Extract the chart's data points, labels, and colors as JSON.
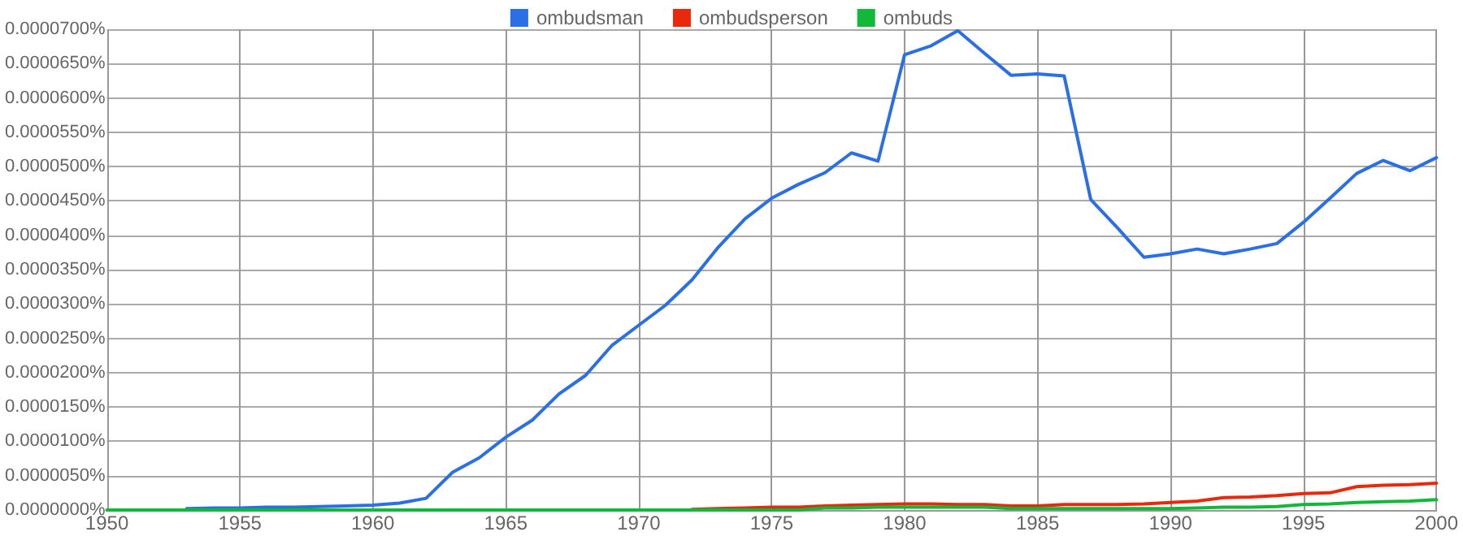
{
  "chart_data": {
    "type": "line",
    "x": [
      1950,
      1951,
      1952,
      1953,
      1954,
      1955,
      1956,
      1957,
      1958,
      1959,
      1960,
      1961,
      1962,
      1963,
      1964,
      1965,
      1966,
      1967,
      1968,
      1969,
      1970,
      1971,
      1972,
      1973,
      1974,
      1975,
      1976,
      1977,
      1978,
      1979,
      1980,
      1981,
      1982,
      1983,
      1984,
      1985,
      1986,
      1987,
      1988,
      1989,
      1990,
      1991,
      1992,
      1993,
      1994,
      1995,
      1996,
      1997,
      1998,
      1999,
      2000
    ],
    "series": [
      {
        "name": "ombudsman",
        "color": "#2a6fe6",
        "values": [
          null,
          null,
          null,
          2e-07,
          3e-07,
          3e-07,
          4e-07,
          4e-07,
          5e-07,
          6e-07,
          7e-07,
          1e-06,
          1.7e-06,
          5.5e-06,
          7.6e-06,
          1.06e-05,
          1.31e-05,
          1.69e-05,
          1.96e-05,
          2.4e-05,
          2.69e-05,
          2.98e-05,
          3.35e-05,
          3.83e-05,
          4.24e-05,
          4.54e-05,
          4.74e-05,
          4.91e-05,
          5.2e-05,
          5.08e-05,
          6.63e-05,
          6.76e-05,
          6.98e-05,
          6.65e-05,
          6.33e-05,
          6.35e-05,
          6.32e-05,
          4.52e-05,
          4.11e-05,
          3.68e-05,
          3.73e-05,
          3.8e-05,
          3.73e-05,
          3.8e-05,
          3.88e-05,
          4.19e-05,
          4.54e-05,
          4.9e-05,
          5.09e-05,
          4.94e-05,
          5.13e-05
        ]
      },
      {
        "name": "ombudsperson",
        "color": "#e8290c",
        "values": [
          null,
          null,
          null,
          null,
          null,
          null,
          null,
          null,
          null,
          null,
          null,
          null,
          null,
          null,
          null,
          null,
          null,
          null,
          null,
          null,
          null,
          null,
          1e-07,
          2e-07,
          3e-07,
          4e-07,
          4e-07,
          6e-07,
          7e-07,
          8e-07,
          9e-07,
          9e-07,
          8e-07,
          8e-07,
          6e-07,
          6e-07,
          8e-07,
          8e-07,
          8e-07,
          9e-07,
          1.1e-06,
          1.3e-06,
          1.8e-06,
          1.9e-06,
          2.1e-06,
          2.4e-06,
          2.5e-06,
          3.4e-06,
          3.6e-06,
          3.7e-06,
          3.9e-06
        ]
      },
      {
        "name": "ombuds",
        "color": "#12b83a",
        "values": [
          0,
          0,
          0,
          0,
          0,
          0,
          0,
          0,
          0,
          0,
          0,
          0,
          0,
          0,
          0,
          0,
          0,
          0,
          0,
          0,
          0,
          0,
          0,
          0,
          0,
          0,
          0,
          3e-07,
          3e-07,
          4e-07,
          4e-07,
          4e-07,
          4e-07,
          4e-07,
          2e-07,
          2e-07,
          2e-07,
          2e-07,
          2e-07,
          2e-07,
          2e-07,
          3e-07,
          4e-07,
          4e-07,
          5e-07,
          8e-07,
          9e-07,
          1.1e-06,
          1.2e-06,
          1.3e-06,
          1.5e-06
        ]
      }
    ],
    "xlim": [
      1950,
      2000
    ],
    "xticks": [
      1950,
      1955,
      1960,
      1965,
      1970,
      1975,
      1980,
      1985,
      1990,
      1995,
      2000
    ],
    "ylim": [
      0,
      7e-05
    ],
    "yticks": [
      {
        "value": 0,
        "label": "0.0000000%"
      },
      {
        "value": 5e-06,
        "label": "0.0000050%"
      },
      {
        "value": 1e-05,
        "label": "0.0000100%"
      },
      {
        "value": 1.5e-05,
        "label": "0.0000150%"
      },
      {
        "value": 2e-05,
        "label": "0.0000200%"
      },
      {
        "value": 2.5e-05,
        "label": "0.0000250%"
      },
      {
        "value": 3e-05,
        "label": "0.0000300%"
      },
      {
        "value": 3.5e-05,
        "label": "0.0000350%"
      },
      {
        "value": 4e-05,
        "label": "0.0000400%"
      },
      {
        "value": 4.5e-05,
        "label": "0.0000450%"
      },
      {
        "value": 5e-05,
        "label": "0.0000500%"
      },
      {
        "value": 5.5e-05,
        "label": "0.0000550%"
      },
      {
        "value": 6e-05,
        "label": "0.0000600%"
      },
      {
        "value": 6.5e-05,
        "label": "0.0000650%"
      },
      {
        "value": 7e-05,
        "label": "0.0000700%"
      }
    ],
    "grid": true,
    "legend": "top",
    "marker": "none"
  }
}
